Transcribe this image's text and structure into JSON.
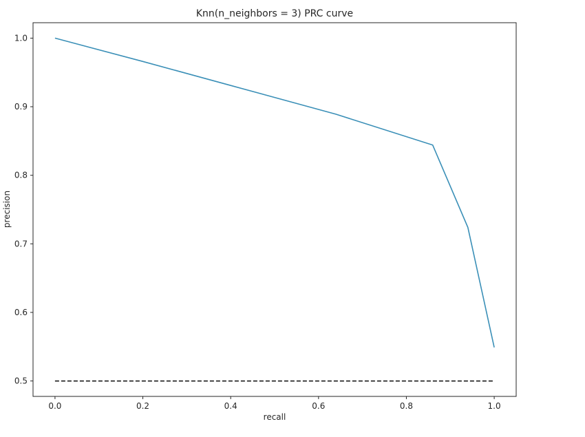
{
  "chart_data": {
    "type": "line",
    "title": "Knn(n_neighbors = 3) PRC curve",
    "xlabel": "recall",
    "ylabel": "precision",
    "xlim": [
      -0.05,
      1.05
    ],
    "ylim": [
      0.4775,
      1.0225
    ],
    "xticks": [
      0.0,
      0.2,
      0.4,
      0.6,
      0.8,
      1.0
    ],
    "xtick_labels": [
      "0.0",
      "0.2",
      "0.4",
      "0.6",
      "0.8",
      "1.0"
    ],
    "yticks": [
      0.5,
      0.6,
      0.7,
      0.8,
      0.9,
      1.0
    ],
    "ytick_labels": [
      "0.5",
      "0.6",
      "0.7",
      "0.8",
      "0.9",
      "1.0"
    ],
    "grid": false,
    "legend": "none",
    "series": [
      {
        "style": "solid",
        "color": "#3a8fb7",
        "x": [
          0.0,
          0.2,
          0.4,
          0.64,
          0.86,
          0.94,
          1.0
        ],
        "y": [
          1.0,
          0.966,
          0.931,
          0.889,
          0.844,
          0.724,
          0.549
        ]
      },
      {
        "style": "dashed",
        "color": "#262626",
        "x": [
          0.0,
          1.0
        ],
        "y": [
          0.5,
          0.5
        ]
      }
    ]
  }
}
